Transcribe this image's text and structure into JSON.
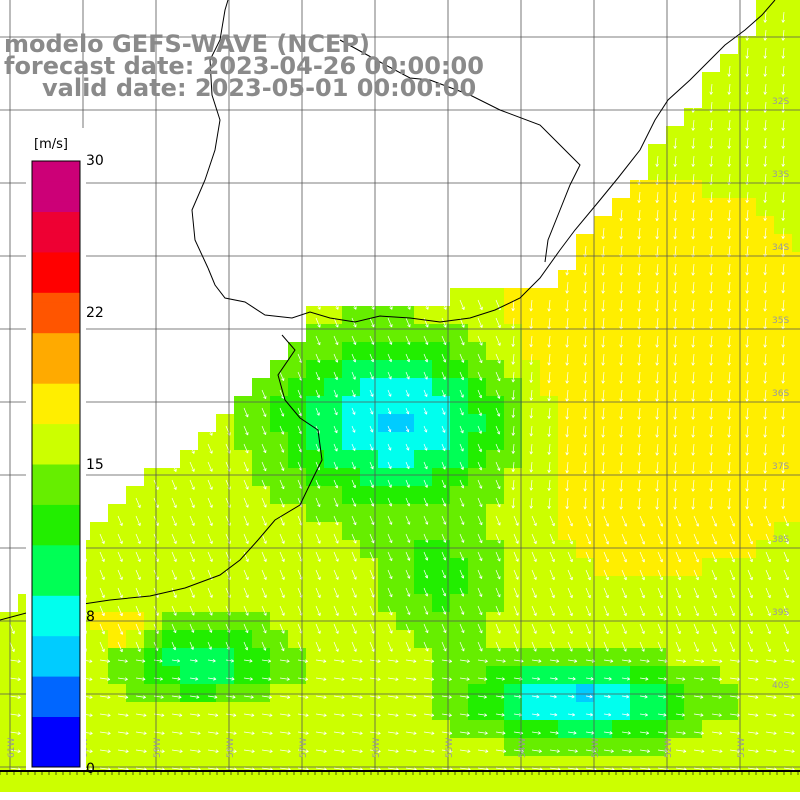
{
  "title": {
    "line1": "modelo GEFS-WAVE (NCEP)",
    "line2": "forecast date: 2023-04-26 00:00:00",
    "line3": "valid date: 2023-05-01 00:00:00"
  },
  "colorbar": {
    "unit": "[m/s]",
    "ticks": [
      "30",
      "22",
      "15",
      "8",
      "0"
    ],
    "colors": [
      "#0000ff",
      "#0066ff",
      "#00ccff",
      "#00ffee",
      "#00ff55",
      "#22ee00",
      "#66ee00",
      "#ccff00",
      "#ffee00",
      "#ffaa00",
      "#ff5500",
      "#ff0000",
      "#ee0033",
      "#cc0077"
    ]
  },
  "lat_labels": [
    "32S",
    "33S",
    "34S",
    "35S",
    "36S",
    "37S",
    "38S",
    "39S",
    "40S"
  ],
  "lon_labels": [
    "61W",
    "60W",
    "59W",
    "58W",
    "57W",
    "56W",
    "55W",
    "54W",
    "53W",
    "52W",
    "51W"
  ],
  "wind_field_note_colors": {
    "land": "#ffffff",
    "grid": "#555555",
    "coast": "#000000",
    "arrow": "#ffffff"
  }
}
